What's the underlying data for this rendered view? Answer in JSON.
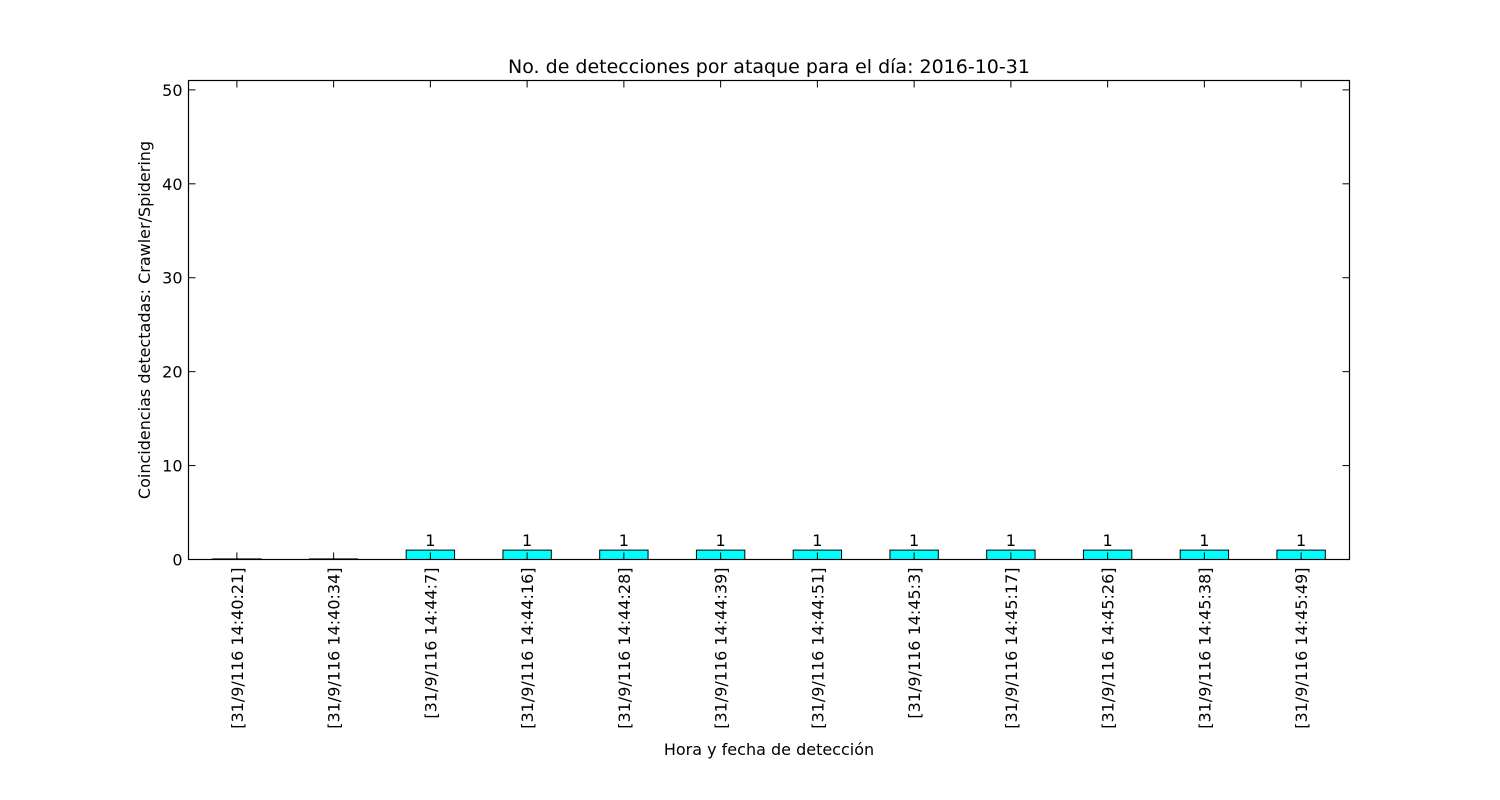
{
  "chart_data": {
    "type": "bar",
    "title": "No. de detecciones por ataque para el día: 2016-10-31",
    "xlabel": "Hora y fecha de detección",
    "ylabel": "Coincidencias detectadas: Crawler/Spidering",
    "ylim": [
      0,
      51
    ],
    "yticks": [
      0,
      10,
      20,
      30,
      40,
      50
    ],
    "grid": false,
    "legend": "none",
    "bar_color": "#00ffff",
    "categories": [
      "[31/9/116 14:40:21]",
      "[31/9/116 14:40:34]",
      "[31/9/116 14:44:7]",
      "[31/9/116 14:44:16]",
      "[31/9/116 14:44:28]",
      "[31/9/116 14:44:39]",
      "[31/9/116 14:44:51]",
      "[31/9/116 14:45:3]",
      "[31/9/116 14:45:17]",
      "[31/9/116 14:45:26]",
      "[31/9/116 14:45:38]",
      "[31/9/116 14:45:49]"
    ],
    "values": [
      0,
      0,
      1,
      1,
      1,
      1,
      1,
      1,
      1,
      1,
      1,
      1
    ],
    "data_labels": [
      null,
      null,
      "1",
      "1",
      "1",
      "1",
      "1",
      "1",
      "1",
      "1",
      "1",
      "1"
    ]
  }
}
